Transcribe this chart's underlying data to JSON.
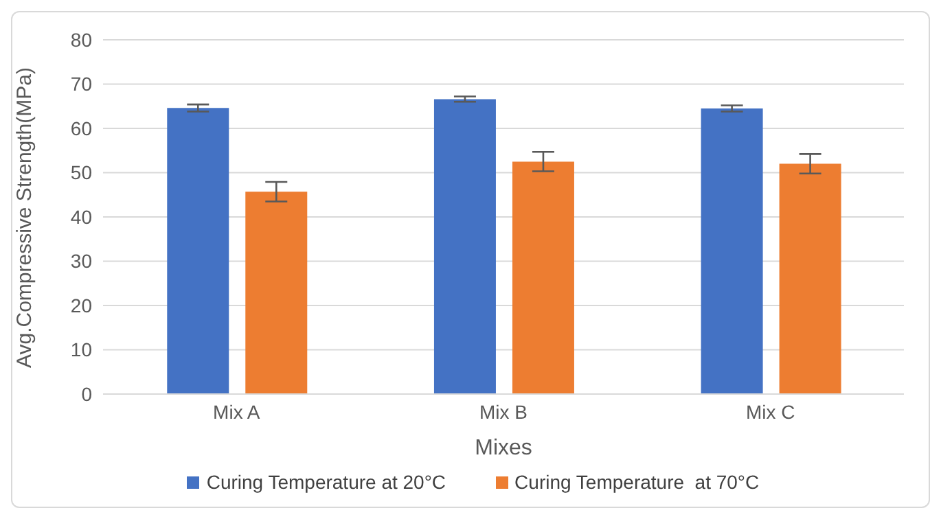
{
  "chart_data": {
    "type": "bar",
    "xlabel": "Mixes",
    "ylabel": "Avg.Compressive Strength(MPa)",
    "categories": [
      "Mix A",
      "Mix B",
      "Mix C"
    ],
    "series": [
      {
        "name": "Curing Temperature at 20°C",
        "color": "#4472c4",
        "values": [
          64.6,
          66.6,
          64.5
        ],
        "errors": [
          0.8,
          0.6,
          0.7
        ]
      },
      {
        "name": "Curing Temperature  at 70°C",
        "color": "#ed7d31",
        "values": [
          45.7,
          52.5,
          52.0
        ],
        "errors": [
          2.2,
          2.2,
          2.2
        ]
      }
    ],
    "ylim": [
      0,
      80
    ],
    "yticks": [
      0,
      10,
      20,
      30,
      40,
      50,
      60,
      70,
      80
    ],
    "grid": "y",
    "legend": "bottom"
  }
}
